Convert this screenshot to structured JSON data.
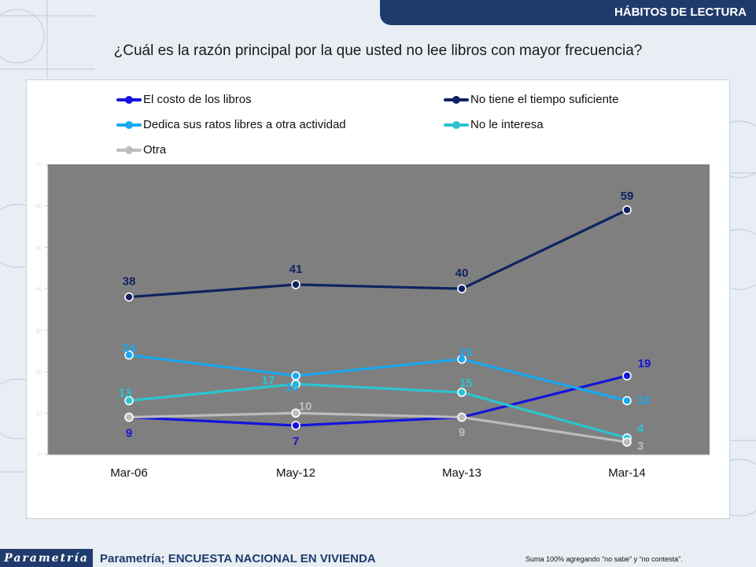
{
  "header": {
    "section_title": "HÁBITOS DE LECTURA"
  },
  "question": "¿Cuál es la razón principal por la que usted no lee libros con mayor frecuencia?",
  "footer": {
    "logo_text": "Parametría",
    "source": "Parametría; ENCUESTA NACIONAL  EN VIVIENDA",
    "note": "Suma 100%  agregando “no sabe” y “no contesta”."
  },
  "chart_data": {
    "type": "line",
    "categories": [
      "Mar-06",
      "May-12",
      "May-13",
      "Mar-14"
    ],
    "ylim": [
      0,
      70
    ],
    "yticks": [
      0,
      10,
      20,
      30,
      40,
      50,
      60,
      70
    ],
    "grid": false,
    "legend_position": "top",
    "plot_background": "#7f7f7f",
    "series": [
      {
        "name": "El costo de los libros",
        "color": "#1414dc",
        "values": [
          9,
          7,
          9,
          19
        ]
      },
      {
        "name": "No tiene el tiempo suficiente",
        "color": "#0f2260",
        "values": [
          38,
          41,
          40,
          59
        ]
      },
      {
        "name": "Dedica sus ratos libres a otra actividad",
        "color": "#1aa8f0",
        "values": [
          24,
          19,
          23,
          13
        ]
      },
      {
        "name": "No le interesa",
        "color": "#2cc4d0",
        "values": [
          13,
          17,
          15,
          4
        ]
      },
      {
        "name": "Otra",
        "color": "#bdbdbd",
        "values": [
          9,
          10,
          9,
          3
        ]
      }
    ]
  }
}
